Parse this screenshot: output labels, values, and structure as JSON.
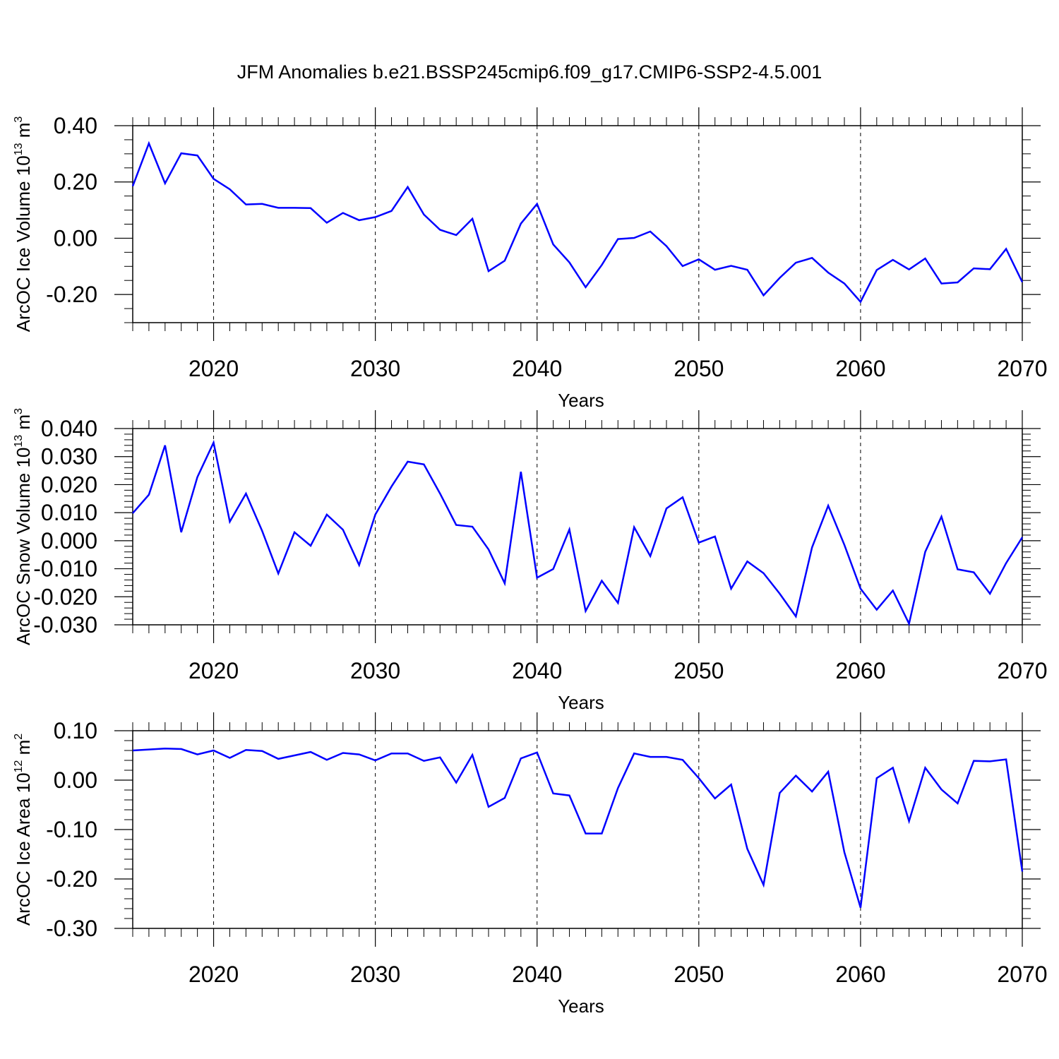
{
  "title": "JFM Anomalies b.e21.BSSP245cmip6.f09_g17.CMIP6-SSP2-4.5.001",
  "colors": {
    "series": "#0000ff",
    "axes": "#000000",
    "grid": "#000000"
  },
  "chart_data": [
    {
      "type": "line",
      "ylabel": "ArcOC Ice Volume 10",
      "ylabel_exp": "13",
      "ylabel_unit": " m",
      "ylabel_unit_exp": "3",
      "xlabel": "Years",
      "xlim": [
        2015,
        2070
      ],
      "ylim": [
        -0.3,
        0.4
      ],
      "yticks": [
        0.4,
        0.2,
        0.0,
        -0.2
      ],
      "yticklabels": [
        "0.40",
        "0.20",
        "0.00",
        "-0.20"
      ],
      "yminor": 0.05,
      "xticks": [
        2020,
        2030,
        2040,
        2050,
        2060,
        2070
      ],
      "xticklabels": [
        "2020",
        "2030",
        "2040",
        "2050",
        "2060",
        "2070"
      ],
      "grid_x": [
        2020,
        2030,
        2040,
        2050,
        2060
      ],
      "series": [
        {
          "x": [
            2015,
            2016,
            2017,
            2018,
            2019,
            2020,
            2021,
            2022,
            2023,
            2024,
            2025,
            2026,
            2027,
            2028,
            2029,
            2030,
            2031,
            2032,
            2033,
            2034,
            2035,
            2036,
            2037,
            2038,
            2039,
            2040,
            2041,
            2042,
            2043,
            2044,
            2045,
            2046,
            2047,
            2048,
            2049,
            2050,
            2051,
            2052,
            2053,
            2054,
            2055,
            2056,
            2057,
            2058,
            2059,
            2060,
            2061,
            2062,
            2063,
            2064,
            2065,
            2066,
            2067,
            2068,
            2069,
            2070
          ],
          "values": [
            0.185,
            0.337,
            0.195,
            0.302,
            0.294,
            0.211,
            0.174,
            0.12,
            0.122,
            0.108,
            0.108,
            0.107,
            0.055,
            0.09,
            0.064,
            0.075,
            0.097,
            0.182,
            0.084,
            0.03,
            0.011,
            0.069,
            -0.117,
            -0.08,
            0.052,
            0.122,
            -0.022,
            -0.086,
            -0.174,
            -0.095,
            -0.003,
            0.001,
            0.024,
            -0.028,
            -0.099,
            -0.075,
            -0.112,
            -0.098,
            -0.112,
            -0.203,
            -0.141,
            -0.087,
            -0.07,
            -0.122,
            -0.161,
            -0.226,
            -0.113,
            -0.077,
            -0.111,
            -0.072,
            -0.161,
            -0.157,
            -0.107,
            -0.11,
            -0.038,
            -0.156
          ]
        }
      ]
    },
    {
      "type": "line",
      "ylabel": "ArcOC Snow Volume 10",
      "ylabel_exp": "13",
      "ylabel_unit": " m",
      "ylabel_unit_exp": "3",
      "xlabel": "Years",
      "xlim": [
        2015,
        2070
      ],
      "ylim": [
        -0.03,
        0.04
      ],
      "yticks": [
        0.04,
        0.03,
        0.02,
        0.01,
        0.0,
        -0.01,
        -0.02,
        -0.03
      ],
      "yticklabels": [
        "0.040",
        "0.030",
        "0.020",
        "0.010",
        "0.000",
        "-0.010",
        "-0.020",
        "-0.030"
      ],
      "yminor": 0.002,
      "xticks": [
        2020,
        2030,
        2040,
        2050,
        2060,
        2070
      ],
      "xticklabels": [
        "2020",
        "2030",
        "2040",
        "2050",
        "2060",
        "2070"
      ],
      "grid_x": [
        2020,
        2030,
        2040,
        2050,
        2060
      ],
      "series": [
        {
          "x": [
            2015,
            2016,
            2017,
            2018,
            2019,
            2020,
            2021,
            2022,
            2023,
            2024,
            2025,
            2026,
            2027,
            2028,
            2029,
            2030,
            2031,
            2032,
            2033,
            2034,
            2035,
            2036,
            2037,
            2038,
            2039,
            2040,
            2041,
            2042,
            2043,
            2044,
            2045,
            2046,
            2047,
            2048,
            2049,
            2050,
            2051,
            2052,
            2053,
            2054,
            2055,
            2056,
            2057,
            2058,
            2059,
            2060,
            2061,
            2062,
            2063,
            2064,
            2065,
            2066,
            2067,
            2068,
            2069,
            2070
          ],
          "values": [
            0.0098,
            0.0164,
            0.034,
            0.003,
            0.0227,
            0.035,
            0.0068,
            0.0168,
            0.0035,
            -0.0117,
            0.003,
            -0.0018,
            0.0093,
            0.0039,
            -0.0087,
            0.0093,
            0.0193,
            0.0282,
            0.0272,
            0.0168,
            0.0056,
            0.005,
            -0.0031,
            -0.0152,
            0.0246,
            -0.0132,
            -0.0101,
            0.004,
            -0.0251,
            -0.0143,
            -0.0222,
            0.0048,
            -0.0055,
            0.0115,
            0.0155,
            -0.0007,
            0.0015,
            -0.0171,
            -0.0074,
            -0.0116,
            -0.0189,
            -0.027,
            -0.0024,
            0.0125,
            -0.0015,
            -0.0171,
            -0.0246,
            -0.0178,
            -0.0296,
            -0.004,
            0.0086,
            -0.0102,
            -0.0113,
            -0.0189,
            -0.008,
            0.0012
          ]
        }
      ]
    },
    {
      "type": "line",
      "ylabel": "ArcOC Ice Area 10",
      "ylabel_exp": "12",
      "ylabel_unit": " m",
      "ylabel_unit_exp": "2",
      "xlabel": "Years",
      "xlim": [
        2015,
        2070
      ],
      "ylim": [
        -0.3,
        0.1
      ],
      "yticks": [
        0.1,
        0.0,
        -0.1,
        -0.2,
        -0.3
      ],
      "yticklabels": [
        "0.10",
        "0.00",
        "-0.10",
        "-0.20",
        "-0.30"
      ],
      "yminor": 0.02,
      "xticks": [
        2020,
        2030,
        2040,
        2050,
        2060,
        2070
      ],
      "xticklabels": [
        "2020",
        "2030",
        "2040",
        "2050",
        "2060",
        "2070"
      ],
      "grid_x": [
        2020,
        2030,
        2040,
        2050,
        2060
      ],
      "series": [
        {
          "x": [
            2015,
            2016,
            2017,
            2018,
            2019,
            2020,
            2021,
            2022,
            2023,
            2024,
            2025,
            2026,
            2027,
            2028,
            2029,
            2030,
            2031,
            2032,
            2033,
            2034,
            2035,
            2036,
            2037,
            2038,
            2039,
            2040,
            2041,
            2042,
            2043,
            2044,
            2045,
            2046,
            2047,
            2048,
            2049,
            2050,
            2051,
            2052,
            2053,
            2054,
            2055,
            2056,
            2057,
            2058,
            2059,
            2060,
            2061,
            2062,
            2063,
            2064,
            2065,
            2066,
            2067,
            2068,
            2069,
            2070
          ],
          "values": [
            0.06,
            0.062,
            0.064,
            0.063,
            0.052,
            0.06,
            0.045,
            0.061,
            0.059,
            0.043,
            0.05,
            0.057,
            0.041,
            0.055,
            0.052,
            0.04,
            0.054,
            0.054,
            0.039,
            0.046,
            -0.005,
            0.051,
            -0.054,
            -0.036,
            0.044,
            0.056,
            -0.027,
            -0.031,
            -0.108,
            -0.108,
            -0.016,
            0.054,
            0.047,
            0.047,
            0.041,
            0.004,
            -0.037,
            -0.009,
            -0.139,
            -0.212,
            -0.026,
            0.009,
            -0.023,
            0.017,
            -0.146,
            -0.258,
            0.004,
            0.025,
            -0.083,
            0.025,
            -0.019,
            -0.047,
            0.039,
            0.038,
            0.042,
            -0.185
          ]
        }
      ]
    }
  ]
}
